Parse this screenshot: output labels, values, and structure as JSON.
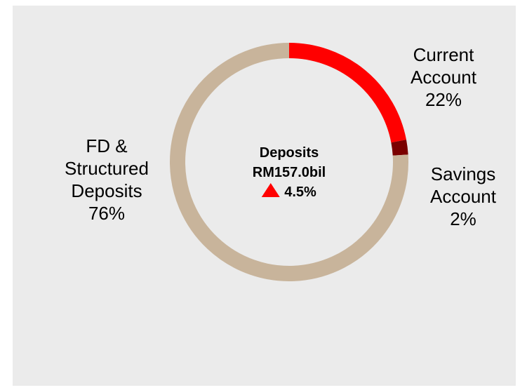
{
  "chart_data": {
    "type": "donut",
    "categories": [
      "Current Account",
      "Savings Account",
      "FD & Structured Deposits"
    ],
    "values": [
      22,
      2,
      76
    ],
    "value_labels": [
      "22%",
      "2%",
      "76%"
    ],
    "colors": [
      "#ff0000",
      "#7a0000",
      "#c8b49b"
    ],
    "center_title": "Deposits",
    "center_total": "RM157.0bil",
    "center_change": "4.5%"
  }
}
